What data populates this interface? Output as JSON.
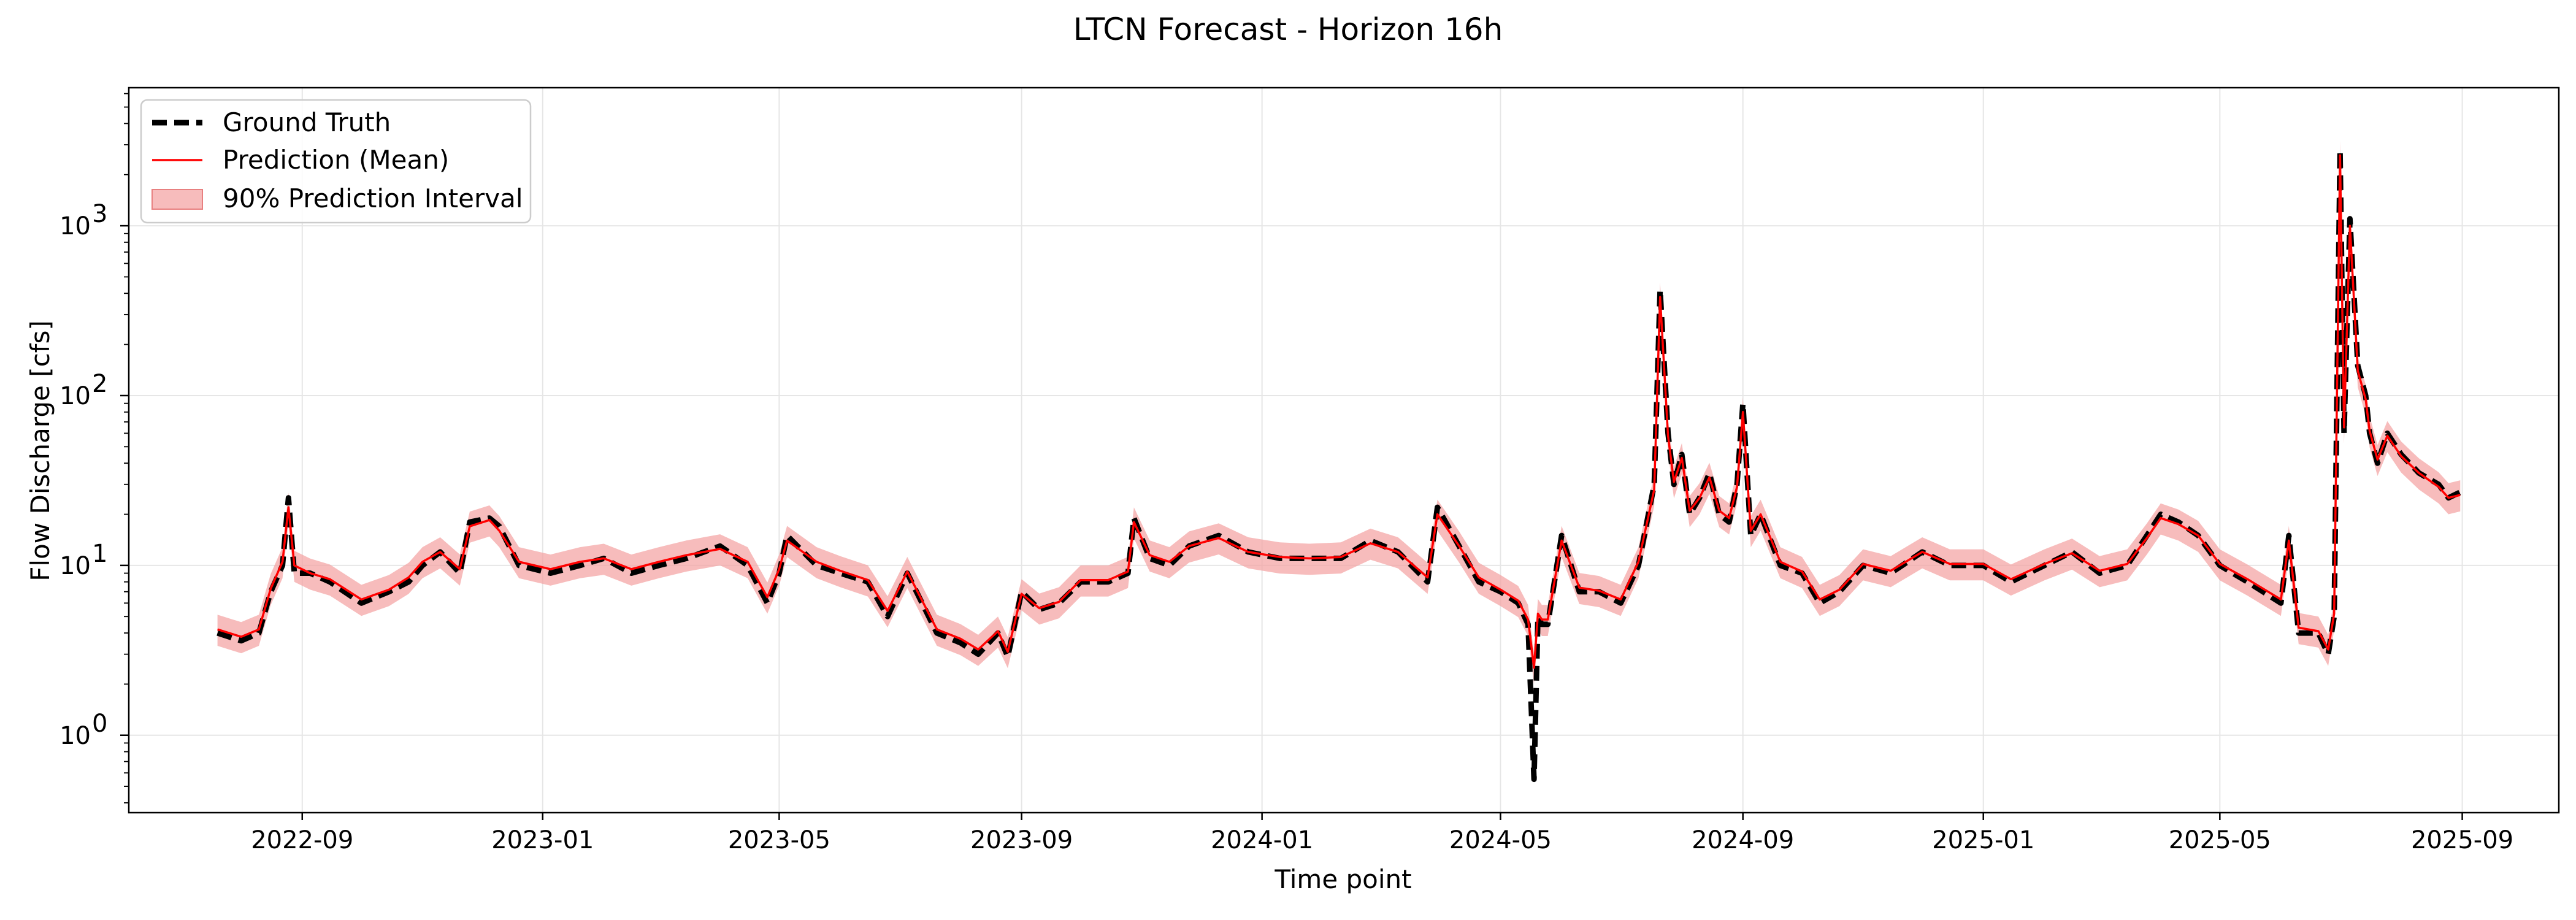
{
  "chart_data": {
    "type": "line",
    "title": "LTCN Forecast - Horizon 16h",
    "xlabel": "Time point",
    "ylabel": "Flow Discharge [cfs]",
    "yscale": "log",
    "ylim": [
      0.35,
      6500
    ],
    "xlim": [
      "2022-06-05",
      "2025-10-20"
    ],
    "grid": true,
    "legend_position": "top-left",
    "colors": {
      "ground_truth": "#000000",
      "prediction": "#ff0000",
      "interval": "#f4a0a0"
    },
    "x_ticks": [
      "2022-09",
      "2023-01",
      "2023-05",
      "2023-09",
      "2024-01",
      "2024-05",
      "2024-09",
      "2025-01",
      "2025-05",
      "2025-09"
    ],
    "y_ticks": [
      {
        "value": 1,
        "base": "10",
        "exp": "0"
      },
      {
        "value": 10,
        "base": "10",
        "exp": "1"
      },
      {
        "value": 100,
        "base": "10",
        "exp": "2"
      },
      {
        "value": 1000,
        "base": "10",
        "exp": "3"
      }
    ],
    "legend": [
      "Ground Truth",
      "Prediction (Mean)",
      "90% Prediction Interval"
    ],
    "series": [
      {
        "name": "Ground Truth",
        "x": [
          "2022-07-20",
          "2022-08-01",
          "2022-08-10",
          "2022-08-16",
          "2022-08-22",
          "2022-08-25",
          "2022-08-28",
          "2022-09-05",
          "2022-09-15",
          "2022-10-01",
          "2022-10-15",
          "2022-10-25",
          "2022-11-01",
          "2022-11-10",
          "2022-11-20",
          "2022-11-25",
          "2022-12-05",
          "2022-12-10",
          "2022-12-20",
          "2023-01-05",
          "2023-01-20",
          "2023-02-01",
          "2023-02-15",
          "2023-03-01",
          "2023-03-15",
          "2023-04-01",
          "2023-04-15",
          "2023-04-25",
          "2023-05-01",
          "2023-05-05",
          "2023-05-20",
          "2023-06-01",
          "2023-06-15",
          "2023-06-25",
          "2023-07-05",
          "2023-07-20",
          "2023-08-01",
          "2023-08-10",
          "2023-08-20",
          "2023-08-25",
          "2023-09-01",
          "2023-09-10",
          "2023-09-20",
          "2023-10-01",
          "2023-10-15",
          "2023-10-25",
          "2023-10-28",
          "2023-11-05",
          "2023-11-15",
          "2023-11-25",
          "2023-12-10",
          "2023-12-25",
          "2024-01-10",
          "2024-01-25",
          "2024-02-10",
          "2024-02-25",
          "2024-03-10",
          "2024-03-25",
          "2024-03-30",
          "2024-04-10",
          "2024-04-20",
          "2024-05-01",
          "2024-05-10",
          "2024-05-15",
          "2024-05-18",
          "2024-05-20",
          "2024-05-22",
          "2024-05-25",
          "2024-06-01",
          "2024-06-10",
          "2024-06-20",
          "2024-07-01",
          "2024-07-10",
          "2024-07-18",
          "2024-07-21",
          "2024-07-25",
          "2024-07-28",
          "2024-08-01",
          "2024-08-05",
          "2024-08-10",
          "2024-08-15",
          "2024-08-20",
          "2024-08-25",
          "2024-08-29",
          "2024-09-01",
          "2024-09-05",
          "2024-09-10",
          "2024-09-20",
          "2024-10-01",
          "2024-10-10",
          "2024-10-20",
          "2024-11-01",
          "2024-11-15",
          "2024-12-01",
          "2024-12-15",
          "2025-01-01",
          "2025-01-15",
          "2025-02-01",
          "2025-02-15",
          "2025-03-01",
          "2025-03-15",
          "2025-03-25",
          "2025-04-01",
          "2025-04-10",
          "2025-04-20",
          "2025-05-01",
          "2025-05-15",
          "2025-06-01",
          "2025-06-05",
          "2025-06-10",
          "2025-06-20",
          "2025-06-25",
          "2025-06-28",
          "2025-07-01",
          "2025-07-03",
          "2025-07-06",
          "2025-07-10",
          "2025-07-14",
          "2025-07-16",
          "2025-07-20",
          "2025-07-25",
          "2025-08-01",
          "2025-08-10",
          "2025-08-20",
          "2025-08-25",
          "2025-08-31"
        ],
        "y": [
          4,
          3.6,
          4,
          7,
          10,
          25,
          9,
          9,
          8,
          6,
          7,
          8,
          10,
          12,
          9,
          18,
          19,
          17,
          10,
          9,
          10,
          11,
          9,
          10,
          11,
          13,
          10,
          6,
          9,
          15,
          10,
          9,
          8,
          5,
          9,
          4,
          3.5,
          3,
          4,
          2.9,
          7,
          5.5,
          6,
          8,
          8,
          9,
          19,
          11,
          10,
          13,
          15,
          12,
          11,
          11,
          11,
          14,
          12,
          8,
          22,
          13,
          8,
          7,
          6,
          4.5,
          0.55,
          5,
          4.5,
          4.5,
          15,
          7,
          7,
          6,
          10,
          30,
          420,
          60,
          30,
          45,
          20,
          25,
          35,
          20,
          18,
          30,
          90,
          15,
          20,
          10,
          9,
          6,
          7,
          10,
          9,
          12,
          10,
          10,
          8,
          10,
          12,
          9,
          10,
          15,
          20,
          18,
          15,
          10,
          8,
          6,
          15,
          4,
          4,
          3,
          5,
          2800,
          60,
          1100,
          150,
          100,
          60,
          40,
          60,
          45,
          35,
          30,
          25,
          27
        ]
      },
      {
        "name": "Prediction (Mean)",
        "x": [
          "2022-07-20",
          "2022-08-01",
          "2022-08-10",
          "2022-08-16",
          "2022-08-22",
          "2022-08-25",
          "2022-08-28",
          "2022-09-05",
          "2022-09-15",
          "2022-10-01",
          "2022-10-15",
          "2022-10-25",
          "2022-11-01",
          "2022-11-10",
          "2022-11-20",
          "2022-11-25",
          "2022-12-05",
          "2022-12-10",
          "2022-12-20",
          "2023-01-05",
          "2023-01-20",
          "2023-02-01",
          "2023-02-15",
          "2023-03-01",
          "2023-03-15",
          "2023-04-01",
          "2023-04-15",
          "2023-04-25",
          "2023-05-01",
          "2023-05-05",
          "2023-05-20",
          "2023-06-01",
          "2023-06-15",
          "2023-06-25",
          "2023-07-05",
          "2023-07-20",
          "2023-08-01",
          "2023-08-10",
          "2023-08-20",
          "2023-08-25",
          "2023-09-01",
          "2023-09-10",
          "2023-09-20",
          "2023-10-01",
          "2023-10-15",
          "2023-10-25",
          "2023-10-28",
          "2023-11-05",
          "2023-11-15",
          "2023-11-25",
          "2023-12-10",
          "2023-12-25",
          "2024-01-10",
          "2024-01-25",
          "2024-02-10",
          "2024-02-25",
          "2024-03-10",
          "2024-03-25",
          "2024-03-30",
          "2024-04-10",
          "2024-04-20",
          "2024-05-01",
          "2024-05-10",
          "2024-05-15",
          "2024-05-18",
          "2024-05-20",
          "2024-05-22",
          "2024-05-25",
          "2024-06-01",
          "2024-06-10",
          "2024-06-20",
          "2024-07-01",
          "2024-07-10",
          "2024-07-18",
          "2024-07-21",
          "2024-07-25",
          "2024-07-28",
          "2024-08-01",
          "2024-08-05",
          "2024-08-10",
          "2024-08-15",
          "2024-08-20",
          "2024-08-25",
          "2024-08-29",
          "2024-09-01",
          "2024-09-05",
          "2024-09-10",
          "2024-09-20",
          "2024-10-01",
          "2024-10-10",
          "2024-10-20",
          "2024-11-01",
          "2024-11-15",
          "2024-12-01",
          "2024-12-15",
          "2025-01-01",
          "2025-01-15",
          "2025-02-01",
          "2025-02-15",
          "2025-03-01",
          "2025-03-15",
          "2025-03-25",
          "2025-04-01",
          "2025-04-10",
          "2025-04-20",
          "2025-05-01",
          "2025-05-15",
          "2025-06-01",
          "2025-06-05",
          "2025-06-10",
          "2025-06-20",
          "2025-06-25",
          "2025-06-28",
          "2025-07-01",
          "2025-07-03",
          "2025-07-06",
          "2025-07-10",
          "2025-07-14",
          "2025-07-16",
          "2025-07-20",
          "2025-07-25",
          "2025-08-01",
          "2025-08-10",
          "2025-08-20",
          "2025-08-25",
          "2025-08-31"
        ],
        "y": [
          4.2,
          3.8,
          4.2,
          7.3,
          10.5,
          22,
          10,
          9,
          8.3,
          6.3,
          7.2,
          8.5,
          10.5,
          12,
          9.5,
          17,
          18.5,
          16,
          10.5,
          9.5,
          10.5,
          11,
          9.5,
          10.5,
          11.5,
          12.5,
          10.5,
          6.5,
          9.5,
          14,
          10.5,
          9.3,
          8.2,
          5.4,
          9.2,
          4.2,
          3.7,
          3.2,
          4.1,
          3.1,
          6.8,
          5.6,
          6.1,
          8.2,
          8.2,
          9.2,
          18,
          11.5,
          10.5,
          13,
          14.5,
          12,
          11.2,
          11,
          11.2,
          13.5,
          12,
          8.5,
          20,
          13,
          8.5,
          7.2,
          6.2,
          4.8,
          2.5,
          5.2,
          4.8,
          4.8,
          14,
          7.4,
          7.1,
          6.3,
          10.5,
          28,
          380,
          58,
          31,
          43,
          21,
          25,
          33,
          21,
          19,
          29,
          80,
          16,
          20,
          10.5,
          9.2,
          6.3,
          7.2,
          10.2,
          9.3,
          12,
          10.2,
          10.2,
          8.3,
          10.2,
          11.8,
          9.3,
          10.2,
          14.5,
          19,
          17.5,
          15,
          10.2,
          8.3,
          6.3,
          14,
          4.3,
          4.1,
          3.2,
          5.2,
          2600,
          65,
          1000,
          140,
          95,
          62,
          42,
          58,
          44,
          35,
          29,
          25,
          26
        ]
      }
    ],
    "interval": {
      "name": "90% Prediction Interval",
      "lower_factor": 0.8,
      "upper_factor": 1.22
    }
  }
}
